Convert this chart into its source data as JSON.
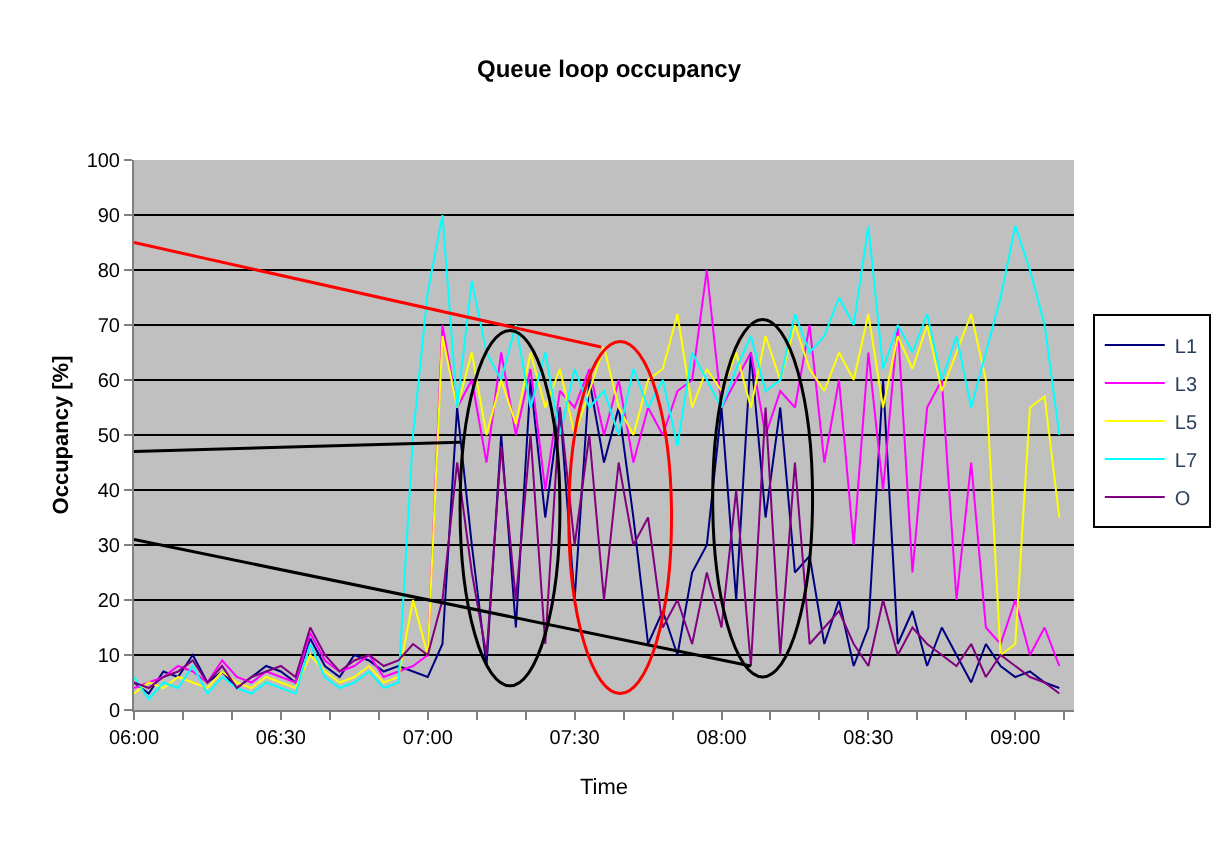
{
  "chart_data": {
    "type": "line",
    "title": "Queue loop occupancy",
    "xlabel": "Time",
    "ylabel": "Occupancy [%]",
    "x": [
      6.0,
      6.05,
      6.1,
      6.15,
      6.2,
      6.25,
      6.3,
      6.35,
      6.4,
      6.45,
      6.5,
      6.55,
      6.6,
      6.65,
      6.7,
      6.75,
      6.8,
      6.85,
      6.9,
      6.95,
      7.0,
      7.05,
      7.1,
      7.15,
      7.2,
      7.25,
      7.3,
      7.35,
      7.4,
      7.45,
      7.5,
      7.55,
      7.6,
      7.65,
      7.7,
      7.75,
      7.8,
      7.85,
      7.9,
      7.95,
      8.0,
      8.05,
      8.1,
      8.15,
      8.2,
      8.25,
      8.3,
      8.35,
      8.4,
      8.45,
      8.5,
      8.55,
      8.6,
      8.65,
      8.7,
      8.75,
      8.8,
      8.85,
      8.9,
      8.95,
      9.0,
      9.05,
      9.1,
      9.15
    ],
    "series": [
      {
        "name": "L1",
        "color": "#000080",
        "values": [
          5,
          3,
          7,
          6,
          10,
          5,
          7,
          4,
          6,
          8,
          7,
          5,
          13,
          8,
          6,
          10,
          9,
          7,
          8,
          7,
          6,
          12,
          55,
          30,
          8,
          50,
          15,
          60,
          35,
          55,
          20,
          60,
          45,
          55,
          35,
          12,
          18,
          10,
          25,
          30,
          55,
          20,
          65,
          35,
          55,
          25,
          28,
          12,
          20,
          8,
          15,
          60,
          12,
          18,
          8,
          15,
          10,
          5,
          12,
          8,
          6,
          7,
          5,
          4
        ]
      },
      {
        "name": "L3",
        "color": "#ff00ff",
        "values": [
          4,
          5,
          6,
          8,
          7,
          5,
          9,
          6,
          5,
          7,
          6,
          5,
          14,
          9,
          7,
          8,
          10,
          6,
          7,
          8,
          10,
          70,
          55,
          60,
          45,
          65,
          50,
          62,
          40,
          58,
          55,
          62,
          50,
          60,
          45,
          55,
          50,
          58,
          60,
          80,
          55,
          60,
          65,
          50,
          58,
          55,
          70,
          45,
          60,
          30,
          65,
          40,
          70,
          25,
          55,
          60,
          20,
          45,
          15,
          12,
          20,
          10,
          15,
          8
        ]
      },
      {
        "name": "L5",
        "color": "#ffff00",
        "values": [
          3,
          5,
          4,
          6,
          5,
          4,
          7,
          5,
          4,
          6,
          5,
          4,
          10,
          7,
          5,
          6,
          8,
          5,
          6,
          20,
          10,
          68,
          55,
          65,
          50,
          60,
          52,
          65,
          55,
          62,
          50,
          58,
          66,
          55,
          50,
          60,
          62,
          72,
          55,
          62,
          58,
          65,
          55,
          68,
          60,
          70,
          62,
          58,
          65,
          60,
          72,
          55,
          68,
          62,
          70,
          58,
          65,
          72,
          60,
          10,
          12,
          55,
          57,
          35
        ]
      },
      {
        "name": "L7",
        "color": "#00ffff",
        "values": [
          6,
          2,
          5,
          4,
          8,
          3,
          6,
          4,
          3,
          5,
          4,
          3,
          12,
          6,
          4,
          5,
          7,
          4,
          5,
          50,
          76,
          90,
          55,
          78,
          65,
          60,
          70,
          55,
          65,
          50,
          62,
          55,
          58,
          50,
          62,
          55,
          60,
          48,
          65,
          60,
          55,
          62,
          68,
          58,
          60,
          72,
          65,
          68,
          75,
          70,
          88,
          62,
          70,
          65,
          72,
          60,
          68,
          55,
          65,
          75,
          88,
          80,
          70,
          50
        ]
      },
      {
        "name": "O",
        "color": "#800080",
        "values": [
          5,
          4,
          6,
          7,
          9,
          5,
          8,
          4,
          6,
          7,
          8,
          6,
          15,
          10,
          7,
          9,
          10,
          8,
          9,
          12,
          10,
          20,
          45,
          25,
          10,
          48,
          20,
          50,
          12,
          55,
          30,
          50,
          20,
          45,
          30,
          35,
          15,
          20,
          12,
          25,
          15,
          40,
          8,
          55,
          10,
          45,
          12,
          15,
          18,
          12,
          8,
          20,
          10,
          15,
          12,
          10,
          8,
          12,
          6,
          10,
          8,
          6,
          5,
          3
        ]
      },
      {
        "type": "line",
        "color": "#ff0000",
        "x": [
          6.0,
          7.59
        ],
        "values": [
          85,
          66
        ]
      },
      {
        "type": "line",
        "color": "#000000",
        "x": [
          6.0,
          7.11
        ],
        "values": [
          47,
          48.7
        ]
      },
      {
        "type": "line",
        "color": "#000000",
        "x": [
          6.0,
          8.1
        ],
        "values": [
          31,
          8
        ]
      }
    ],
    "xlim": [
      6.0,
      9.2
    ],
    "xticks": [
      {
        "value": 6.0,
        "label": "06:00"
      },
      {
        "value": 6.1667,
        "label": null
      },
      {
        "value": 6.3333,
        "label": null
      },
      {
        "value": 6.5,
        "label": "06:30"
      },
      {
        "value": 6.6667,
        "label": null
      },
      {
        "value": 6.8333,
        "label": null
      },
      {
        "value": 7.0,
        "label": "07:00"
      },
      {
        "value": 7.1667,
        "label": null
      },
      {
        "value": 7.3333,
        "label": null
      },
      {
        "value": 7.5,
        "label": "07:30"
      },
      {
        "value": 7.6667,
        "label": null
      },
      {
        "value": 7.8333,
        "label": null
      },
      {
        "value": 8.0,
        "label": "08:00"
      },
      {
        "value": 8.1667,
        "label": null
      },
      {
        "value": 8.3333,
        "label": null
      },
      {
        "value": 8.5,
        "label": "08:30"
      },
      {
        "value": 8.6667,
        "label": null
      },
      {
        "value": 8.8333,
        "label": null
      },
      {
        "value": 9.0,
        "label": "09:00"
      },
      {
        "value": 9.1667,
        "label": null
      }
    ],
    "ylim": [
      0,
      100
    ],
    "yticks": [
      0,
      10,
      20,
      30,
      40,
      50,
      60,
      70,
      80,
      90,
      100
    ],
    "grid": "y",
    "legend": "right",
    "marker": "none",
    "line_style": "solid"
  }
}
